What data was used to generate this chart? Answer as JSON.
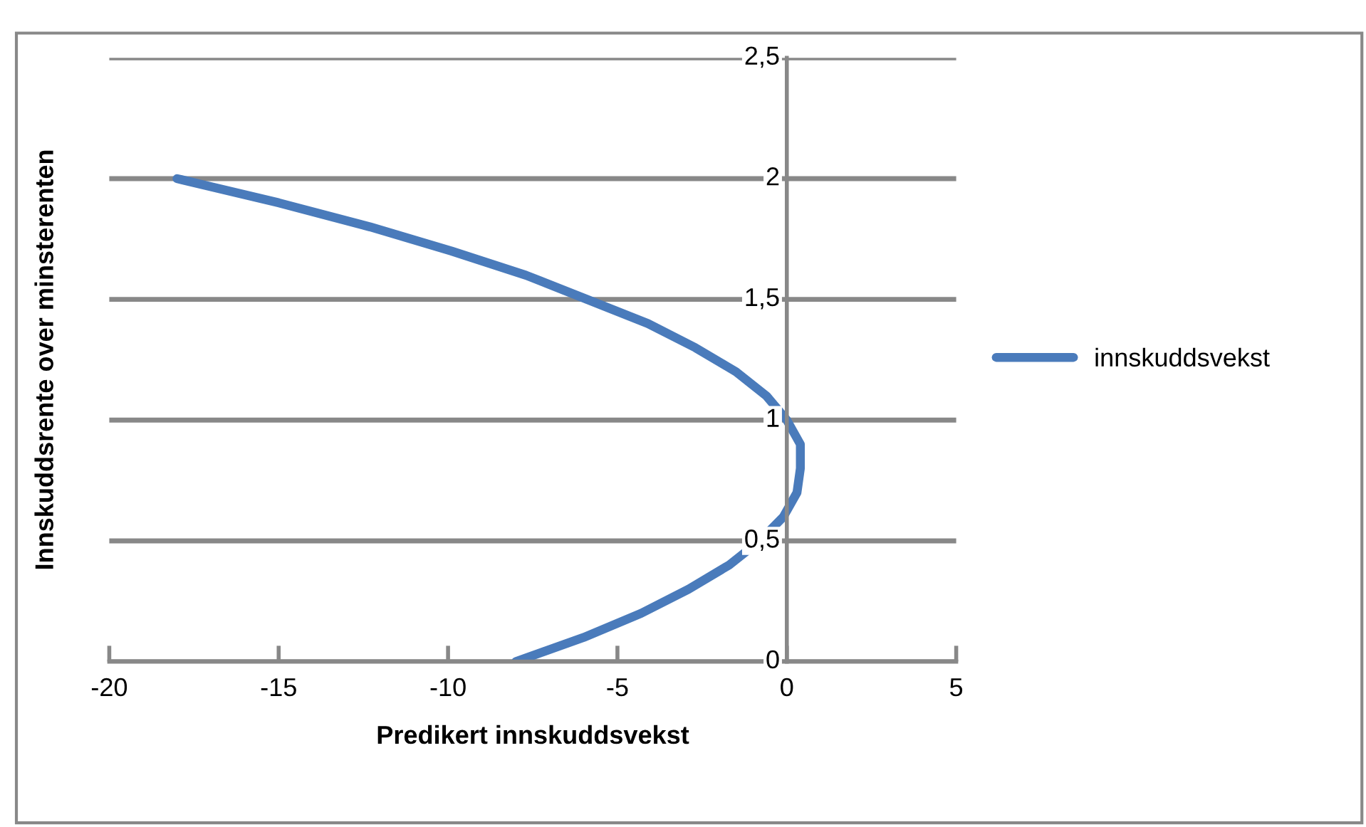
{
  "chart_data": {
    "type": "line",
    "xlabel": "Predikert innskuddsvekst",
    "ylabel": "Innskuddsrente over minsterenten",
    "xlim": [
      -20,
      5
    ],
    "xticks": [
      -20,
      -15,
      -10,
      -5,
      0,
      5
    ],
    "ylim": [
      0,
      2.5
    ],
    "yticks": [
      {
        "value": 0,
        "label": "0"
      },
      {
        "value": 0.5,
        "label": "0,5"
      },
      {
        "value": 1,
        "label": "1"
      },
      {
        "value": 1.5,
        "label": "1,5"
      },
      {
        "value": 2,
        "label": "2"
      },
      {
        "value": 2.5,
        "label": "2,5"
      }
    ],
    "grid": "y",
    "legend": "right",
    "marker": "none",
    "line_style": "solid",
    "series": [
      {
        "name": "innskuddsvekst",
        "color": "#4a7bbb",
        "x": [
          -8,
          -6.0,
          -4.3,
          -2.9,
          -1.7,
          -0.8,
          -0.1,
          0.3,
          0.4,
          0.4,
          0,
          -0.6,
          -1.5,
          -2.7,
          -4.1,
          -5.9,
          -7.7,
          -9.9,
          -12.3,
          -15.0,
          -18
        ],
        "values": [
          0,
          0.1,
          0.2,
          0.3,
          0.4,
          0.5,
          0.6,
          0.7,
          0.8,
          0.9,
          1.0,
          1.1,
          1.2,
          1.3,
          1.4,
          1.5,
          1.6,
          1.7,
          1.8,
          1.9,
          2.0
        ]
      }
    ]
  }
}
